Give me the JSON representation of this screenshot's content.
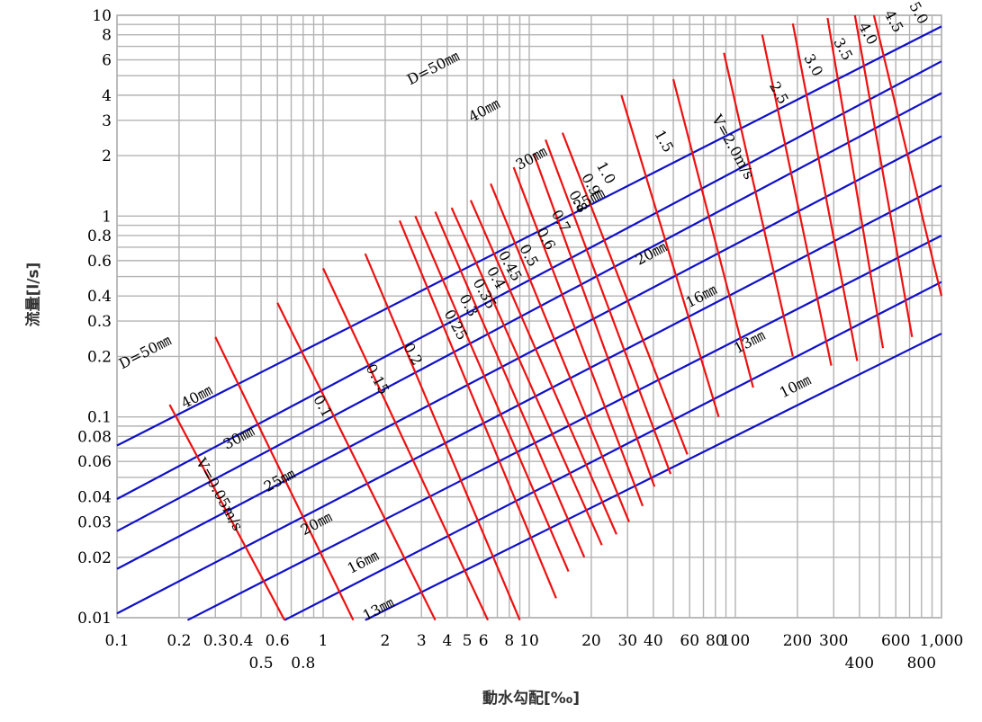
{
  "chart_data": {
    "type": "line",
    "xlabel": "動水勾配[‰]",
    "ylabel": "流量[l/s]",
    "x_scale": "log",
    "y_scale": "log",
    "xlim": [
      0.1,
      1000
    ],
    "ylim": [
      0.01,
      10
    ],
    "grid": true,
    "x_ticks": [
      {
        "value": 0.1,
        "label": "0.1",
        "row": 1
      },
      {
        "value": 0.2,
        "label": "0.2",
        "row": 1
      },
      {
        "value": 0.3,
        "label": "0.3",
        "row": 1
      },
      {
        "value": 0.4,
        "label": "0.4",
        "row": 1
      },
      {
        "value": 0.5,
        "label": "0.5",
        "row": 2
      },
      {
        "value": 0.6,
        "label": "0.6",
        "row": 1
      },
      {
        "value": 0.8,
        "label": "0.8",
        "row": 2
      },
      {
        "value": 1,
        "label": "1",
        "row": 1
      },
      {
        "value": 2,
        "label": "2",
        "row": 1
      },
      {
        "value": 3,
        "label": "3",
        "row": 1
      },
      {
        "value": 4,
        "label": "4",
        "row": 1
      },
      {
        "value": 5,
        "label": "5",
        "row": 1
      },
      {
        "value": 6,
        "label": "6",
        "row": 1
      },
      {
        "value": 8,
        "label": "8",
        "row": 1
      },
      {
        "value": 10,
        "label": "10",
        "row": 1
      },
      {
        "value": 20,
        "label": "20",
        "row": 1
      },
      {
        "value": 30,
        "label": "30",
        "row": 1
      },
      {
        "value": 40,
        "label": "40",
        "row": 1
      },
      {
        "value": 60,
        "label": "60",
        "row": 1
      },
      {
        "value": 80,
        "label": "80",
        "row": 1
      },
      {
        "value": 100,
        "label": "100",
        "row": 1
      },
      {
        "value": 200,
        "label": "200",
        "row": 1
      },
      {
        "value": 300,
        "label": "300",
        "row": 1
      },
      {
        "value": 400,
        "label": "400",
        "row": 2
      },
      {
        "value": 600,
        "label": "600",
        "row": 1
      },
      {
        "value": 800,
        "label": "800",
        "row": 2
      },
      {
        "value": 1000,
        "label": "1,000",
        "row": 1
      }
    ],
    "y_ticks": [
      {
        "value": 0.01,
        "label": "0.01"
      },
      {
        "value": 0.02,
        "label": "0.02"
      },
      {
        "value": 0.03,
        "label": "0.03"
      },
      {
        "value": 0.04,
        "label": "0.04"
      },
      {
        "value": 0.06,
        "label": "0.06"
      },
      {
        "value": 0.08,
        "label": "0.08"
      },
      {
        "value": 0.1,
        "label": "0.1"
      },
      {
        "value": 0.2,
        "label": "0.2"
      },
      {
        "value": 0.3,
        "label": "0.3"
      },
      {
        "value": 0.4,
        "label": "0.4"
      },
      {
        "value": 0.6,
        "label": "0.6"
      },
      {
        "value": 0.8,
        "label": "0.8"
      },
      {
        "value": 1,
        "label": "1"
      },
      {
        "value": 2,
        "label": "2"
      },
      {
        "value": 3,
        "label": "3"
      },
      {
        "value": 4,
        "label": "4"
      },
      {
        "value": 6,
        "label": "6"
      },
      {
        "value": 8,
        "label": "8"
      },
      {
        "value": 10,
        "label": "10"
      }
    ],
    "diameter_lines": [
      {
        "name": "10mm",
        "start": [
          1.6,
          0.0093
        ],
        "end": [
          1000,
          0.26
        ],
        "label": "10㎜",
        "label_at": [
          200,
          0.135
        ]
      },
      {
        "name": "13mm",
        "start": [
          0.65,
          0.0093
        ],
        "end": [
          1000,
          0.47
        ],
        "label": "13㎜",
        "label_at": [
          1.9,
          0.0105
        ],
        "label2": "13㎜",
        "label2_at": [
          120,
          0.225
        ]
      },
      {
        "name": "16mm",
        "start": [
          0.22,
          0.0093
        ],
        "end": [
          1000,
          0.8
        ],
        "label": "16㎜",
        "label_at": [
          1.6,
          0.018
        ],
        "label2": "16㎜",
        "label2_at": [
          70,
          0.38
        ]
      },
      {
        "name": "20mm",
        "start": [
          0.1,
          0.0105
        ],
        "end": [
          1000,
          1.42
        ],
        "label": "20㎜",
        "label_at": [
          0.95,
          0.028
        ],
        "label2": "20㎜",
        "label2_at": [
          40,
          0.62
        ]
      },
      {
        "name": "25mm",
        "start": [
          0.1,
          0.0175
        ],
        "end": [
          1000,
          2.5
        ],
        "label": "25㎜",
        "label_at": [
          0.63,
          0.046
        ],
        "label2": "25㎜",
        "label2_at": [
          20,
          1.15
        ]
      },
      {
        "name": "30mm",
        "start": [
          0.1,
          0.027
        ],
        "end": [
          1000,
          4.1
        ],
        "label": "30㎜",
        "label_at": [
          0.4,
          0.075
        ],
        "label2": "30㎜",
        "label2_at": [
          10.5,
          1.85
        ]
      },
      {
        "name": "40mm",
        "start": [
          0.1,
          0.039
        ],
        "end": [
          1000,
          5.9
        ],
        "label": "40㎜",
        "label_at": [
          0.25,
          0.12
        ],
        "label2": "40㎜",
        "label2_at": [
          6.2,
          3.2
        ]
      },
      {
        "name": "50mm",
        "start": [
          0.1,
          0.072
        ],
        "end": [
          1000,
          8.8
        ],
        "label": "D=50㎜",
        "label_at": [
          0.14,
          0.2
        ],
        "label2": "D=50㎜",
        "label2_at": [
          3.5,
          5.2
        ]
      }
    ],
    "velocity_lines": [
      {
        "v": "0.05",
        "start": [
          0.18,
          0.115
        ],
        "end": [
          0.65,
          0.0093
        ]
      },
      {
        "v": "0.1",
        "start": [
          0.3,
          0.25
        ],
        "end": [
          1.4,
          0.0093
        ]
      },
      {
        "v": "0.15",
        "start": [
          0.6,
          0.37
        ],
        "end": [
          3.5,
          0.0093
        ]
      },
      {
        "v": "0.2",
        "start": [
          1.0,
          0.55
        ],
        "end": [
          6.3,
          0.0093
        ]
      },
      {
        "v": "0.25",
        "start": [
          1.6,
          0.65
        ],
        "end": [
          9.0,
          0.0093
        ]
      },
      {
        "v": "0.3",
        "start": [
          2.35,
          0.95
        ],
        "end": [
          13.5,
          0.0125
        ]
      },
      {
        "v": "0.35",
        "start": [
          2.8,
          1.0
        ],
        "end": [
          15.5,
          0.017
        ]
      },
      {
        "v": "0.4",
        "start": [
          3.5,
          1.05
        ],
        "end": [
          18.5,
          0.02
        ]
      },
      {
        "v": "0.45",
        "start": [
          4.2,
          1.1
        ],
        "end": [
          22.5,
          0.023
        ]
      },
      {
        "v": "0.5",
        "start": [
          5.2,
          1.2
        ],
        "end": [
          26.5,
          0.026
        ]
      },
      {
        "v": "0.6",
        "start": [
          6.5,
          1.45
        ],
        "end": [
          30.5,
          0.03
        ]
      },
      {
        "v": "0.7",
        "start": [
          8.4,
          1.75
        ],
        "end": [
          35.5,
          0.036
        ]
      },
      {
        "v": "0.8",
        "start": [
          10.5,
          2.05
        ],
        "end": [
          40.5,
          0.045
        ]
      },
      {
        "v": "0.9",
        "start": [
          12.0,
          2.4
        ],
        "end": [
          48.5,
          0.052
        ]
      },
      {
        "v": "1.0",
        "start": [
          14.5,
          2.6
        ],
        "end": [
          58.5,
          0.065
        ]
      },
      {
        "v": "1.5",
        "start": [
          28,
          4.0
        ],
        "end": [
          83,
          0.1
        ]
      },
      {
        "v": "2.0",
        "start": [
          50,
          4.8
        ],
        "end": [
          122,
          0.14
        ]
      },
      {
        "v": "2.5",
        "start": [
          88,
          6.5
        ],
        "end": [
          190,
          0.2
        ]
      },
      {
        "v": "3.0",
        "start": [
          135,
          8.0
        ],
        "end": [
          292,
          0.18
        ]
      },
      {
        "v": "3.5",
        "start": [
          190,
          9.1
        ],
        "end": [
          390,
          0.19
        ]
      },
      {
        "v": "4.0",
        "start": [
          280,
          9.7
        ],
        "end": [
          520,
          0.22
        ]
      },
      {
        "v": "4.5",
        "start": [
          380,
          10.0
        ],
        "end": [
          720,
          0.25
        ]
      },
      {
        "v": "5.0",
        "start": [
          470,
          10.0
        ],
        "end": [
          1000,
          0.4
        ]
      }
    ],
    "velocity_labels": [
      {
        "text": "V=0.05m/s",
        "at": [
          0.3,
          0.04
        ]
      },
      {
        "text": "0.1",
        "at": [
          0.95,
          0.11
        ]
      },
      {
        "text": "0.15",
        "at": [
          1.75,
          0.15
        ]
      },
      {
        "text": "0.2",
        "at": [
          2.6,
          0.2
        ]
      },
      {
        "text": "0.25",
        "at": [
          4.2,
          0.28
        ]
      },
      {
        "text": "0.3",
        "at": [
          4.85,
          0.35
        ]
      },
      {
        "text": "0.35",
        "at": [
          5.8,
          0.4
        ]
      },
      {
        "text": "0.4",
        "at": [
          6.6,
          0.48
        ]
      },
      {
        "text": "0.45",
        "at": [
          7.7,
          0.55
        ]
      },
      {
        "text": "0.5",
        "at": [
          9.5,
          0.62
        ]
      },
      {
        "text": "0.6",
        "at": [
          11.5,
          0.75
        ]
      },
      {
        "text": "0.7",
        "at": [
          13.6,
          0.92
        ]
      },
      {
        "text": "0.8",
        "at": [
          16.5,
          1.15
        ]
      },
      {
        "text": "0.9",
        "at": [
          19,
          1.4
        ]
      },
      {
        "text": "1.0",
        "at": [
          22.5,
          1.6
        ]
      },
      {
        "text": "1.5",
        "at": [
          43,
          2.3
        ]
      },
      {
        "text": "V=2.0m/s",
        "at": [
          93,
          2.15
        ]
      },
      {
        "text": "2.5",
        "at": [
          155,
          4.0
        ]
      },
      {
        "text": "3.0",
        "at": [
          228,
          5.5
        ]
      },
      {
        "text": "3.5",
        "at": [
          318,
          6.6
        ]
      },
      {
        "text": "4.0",
        "at": [
          420,
          7.9
        ]
      },
      {
        "text": "4.5",
        "at": [
          560,
          9.1
        ]
      },
      {
        "text": "5.0",
        "at": [
          740,
          10.0
        ]
      }
    ],
    "colors": {
      "grid": "#b3b3b3",
      "diameter": "#1010c8",
      "velocity": "#ee1010",
      "axis_title": "#333333"
    }
  }
}
